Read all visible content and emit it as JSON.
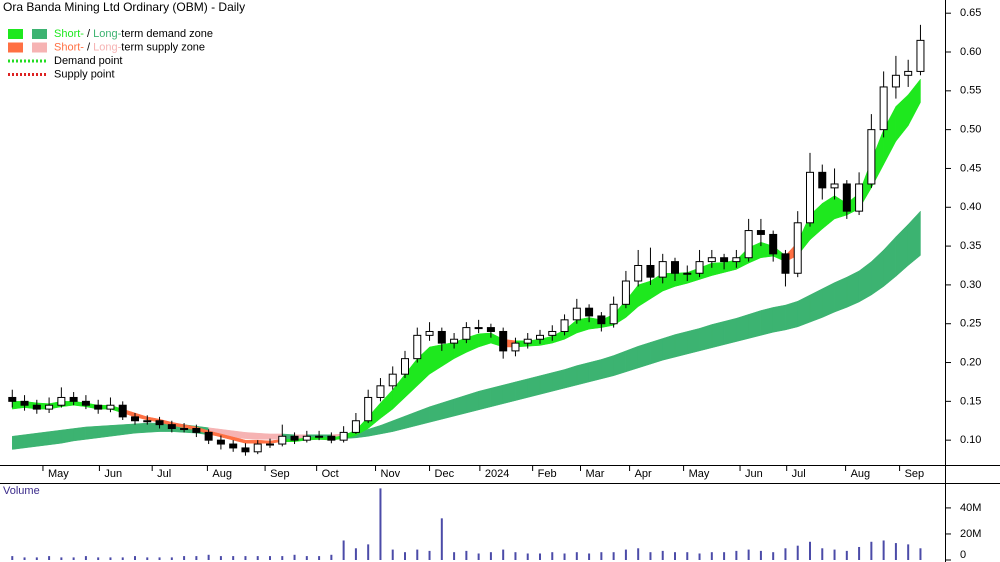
{
  "chart_data": {
    "type": "candlestick",
    "title": "Ora Banda Mining Ltd Ordinary (OBM) - Daily",
    "xlim": [
      -1,
      76
    ],
    "xticks": [
      {
        "value": 2.5,
        "label": "May"
      },
      {
        "value": 7.1,
        "label": "Jun"
      },
      {
        "value": 11.4,
        "label": "Jul"
      },
      {
        "value": 15.9,
        "label": "Aug"
      },
      {
        "value": 20.6,
        "label": "Sep"
      },
      {
        "value": 24.8,
        "label": "Oct"
      },
      {
        "value": 29.6,
        "label": "Nov"
      },
      {
        "value": 34.0,
        "label": "Dec"
      },
      {
        "value": 38.1,
        "label": "2024"
      },
      {
        "value": 42.4,
        "label": "Feb"
      },
      {
        "value": 46.3,
        "label": "Mar"
      },
      {
        "value": 50.3,
        "label": "Apr"
      },
      {
        "value": 54.7,
        "label": "May"
      },
      {
        "value": 59.3,
        "label": "Jun"
      },
      {
        "value": 63.1,
        "label": "Jul"
      },
      {
        "value": 67.9,
        "label": "Aug"
      },
      {
        "value": 72.3,
        "label": "Sep"
      }
    ],
    "ylim": [
      0.068,
      0.667
    ],
    "yticks": [
      {
        "value": 0.1,
        "label": "0.10"
      },
      0.15,
      {
        "value": 0.2,
        "label": "0.20"
      },
      0.25,
      {
        "value": 0.3,
        "label": "0.30"
      },
      0.35,
      {
        "value": 0.4,
        "label": "0.40"
      },
      0.45,
      {
        "value": 0.5,
        "label": "0.50"
      },
      0.55,
      {
        "value": 0.6,
        "label": "0.60"
      },
      0.65
    ],
    "open": [
      0.155,
      0.15,
      0.145,
      0.14,
      0.145,
      0.155,
      0.15,
      0.145,
      0.14,
      0.145,
      0.13,
      0.125,
      0.125,
      0.12,
      0.115,
      0.115,
      0.11,
      0.1,
      0.095,
      0.09,
      0.085,
      0.095,
      0.095,
      0.105,
      0.1,
      0.105,
      0.105,
      0.1,
      0.11,
      0.125,
      0.155,
      0.17,
      0.185,
      0.205,
      0.235,
      0.24,
      0.225,
      0.23,
      0.245,
      0.245,
      0.24,
      0.215,
      0.225,
      0.23,
      0.235,
      0.24,
      0.255,
      0.27,
      0.26,
      0.25,
      0.275,
      0.305,
      0.325,
      0.31,
      0.33,
      0.315,
      0.315,
      0.33,
      0.335,
      0.33,
      0.335,
      0.37,
      0.365,
      0.34,
      0.315,
      0.38,
      0.445,
      0.425,
      0.43,
      0.395,
      0.43,
      0.5,
      0.555,
      0.57,
      0.575
    ],
    "high": [
      0.165,
      0.158,
      0.152,
      0.155,
      0.168,
      0.162,
      0.158,
      0.152,
      0.155,
      0.15,
      0.135,
      0.132,
      0.13,
      0.125,
      0.122,
      0.12,
      0.114,
      0.106,
      0.1,
      0.096,
      0.1,
      0.102,
      0.12,
      0.11,
      0.112,
      0.112,
      0.11,
      0.118,
      0.135,
      0.165,
      0.18,
      0.195,
      0.215,
      0.245,
      0.252,
      0.245,
      0.238,
      0.252,
      0.255,
      0.25,
      0.245,
      0.232,
      0.238,
      0.242,
      0.248,
      0.262,
      0.282,
      0.275,
      0.265,
      0.285,
      0.318,
      0.345,
      0.348,
      0.34,
      0.335,
      0.325,
      0.345,
      0.345,
      0.34,
      0.345,
      0.385,
      0.385,
      0.37,
      0.345,
      0.395,
      0.47,
      0.455,
      0.45,
      0.435,
      0.445,
      0.52,
      0.575,
      0.595,
      0.59,
      0.635
    ],
    "low": [
      0.142,
      0.138,
      0.134,
      0.135,
      0.142,
      0.145,
      0.14,
      0.134,
      0.136,
      0.126,
      0.12,
      0.12,
      0.115,
      0.11,
      0.11,
      0.104,
      0.095,
      0.088,
      0.085,
      0.08,
      0.082,
      0.09,
      0.092,
      0.095,
      0.097,
      0.1,
      0.096,
      0.097,
      0.108,
      0.122,
      0.15,
      0.165,
      0.18,
      0.2,
      0.228,
      0.215,
      0.218,
      0.225,
      0.238,
      0.232,
      0.205,
      0.208,
      0.218,
      0.224,
      0.228,
      0.235,
      0.25,
      0.252,
      0.24,
      0.245,
      0.27,
      0.298,
      0.3,
      0.302,
      0.305,
      0.305,
      0.31,
      0.322,
      0.32,
      0.322,
      0.33,
      0.35,
      0.33,
      0.298,
      0.31,
      0.375,
      0.41,
      0.41,
      0.385,
      0.39,
      0.425,
      0.49,
      0.54,
      0.555,
      0.57
    ],
    "close": [
      0.15,
      0.145,
      0.14,
      0.145,
      0.155,
      0.15,
      0.145,
      0.14,
      0.145,
      0.13,
      0.125,
      0.125,
      0.12,
      0.115,
      0.115,
      0.11,
      0.1,
      0.095,
      0.09,
      0.085,
      0.095,
      0.095,
      0.105,
      0.1,
      0.105,
      0.105,
      0.1,
      0.11,
      0.125,
      0.155,
      0.17,
      0.185,
      0.205,
      0.235,
      0.24,
      0.225,
      0.23,
      0.245,
      0.245,
      0.24,
      0.215,
      0.225,
      0.23,
      0.235,
      0.24,
      0.255,
      0.27,
      0.26,
      0.25,
      0.275,
      0.305,
      0.325,
      0.31,
      0.33,
      0.315,
      0.315,
      0.33,
      0.335,
      0.33,
      0.335,
      0.37,
      0.365,
      0.34,
      0.315,
      0.38,
      0.445,
      0.425,
      0.43,
      0.395,
      0.43,
      0.5,
      0.555,
      0.57,
      0.575,
      0.615
    ],
    "short_zone": {
      "upper": [
        0.15,
        0.15,
        0.148,
        0.147,
        0.15,
        0.15,
        0.148,
        0.145,
        0.145,
        0.14,
        0.135,
        0.13,
        0.127,
        0.123,
        0.12,
        0.117,
        0.112,
        0.108,
        0.104,
        0.1,
        0.1,
        0.099,
        0.101,
        0.101,
        0.103,
        0.104,
        0.103,
        0.106,
        0.113,
        0.13,
        0.148,
        0.165,
        0.185,
        0.205,
        0.22,
        0.223,
        0.226,
        0.232,
        0.237,
        0.238,
        0.23,
        0.228,
        0.228,
        0.23,
        0.234,
        0.242,
        0.255,
        0.258,
        0.255,
        0.262,
        0.28,
        0.3,
        0.305,
        0.315,
        0.315,
        0.316,
        0.322,
        0.328,
        0.329,
        0.332,
        0.348,
        0.355,
        0.35,
        0.338,
        0.355,
        0.39,
        0.405,
        0.415,
        0.405,
        0.418,
        0.46,
        0.5,
        0.53,
        0.545,
        0.565
      ],
      "lower": [
        0.14,
        0.142,
        0.14,
        0.14,
        0.143,
        0.145,
        0.143,
        0.14,
        0.14,
        0.135,
        0.13,
        0.126,
        0.123,
        0.119,
        0.116,
        0.113,
        0.108,
        0.104,
        0.1,
        0.096,
        0.096,
        0.096,
        0.098,
        0.098,
        0.1,
        0.101,
        0.1,
        0.102,
        0.106,
        0.115,
        0.128,
        0.14,
        0.155,
        0.17,
        0.185,
        0.195,
        0.205,
        0.213,
        0.22,
        0.225,
        0.22,
        0.22,
        0.221,
        0.222,
        0.225,
        0.23,
        0.238,
        0.243,
        0.245,
        0.248,
        0.258,
        0.272,
        0.282,
        0.292,
        0.298,
        0.302,
        0.307,
        0.312,
        0.316,
        0.32,
        0.328,
        0.335,
        0.337,
        0.33,
        0.338,
        0.358,
        0.372,
        0.385,
        0.39,
        0.398,
        0.425,
        0.455,
        0.485,
        0.505,
        0.535
      ]
    },
    "long_zone": {
      "upper": [
        0.105,
        0.107,
        0.109,
        0.111,
        0.113,
        0.115,
        0.117,
        0.118,
        0.119,
        0.12,
        0.121,
        0.122,
        0.122,
        0.121,
        0.12,
        0.118,
        0.116,
        0.114,
        0.112,
        0.11,
        0.109,
        0.108,
        0.108,
        0.107,
        0.107,
        0.107,
        0.107,
        0.108,
        0.11,
        0.114,
        0.119,
        0.125,
        0.131,
        0.137,
        0.143,
        0.148,
        0.153,
        0.158,
        0.163,
        0.167,
        0.171,
        0.175,
        0.179,
        0.183,
        0.187,
        0.191,
        0.196,
        0.2,
        0.204,
        0.209,
        0.215,
        0.221,
        0.226,
        0.231,
        0.236,
        0.24,
        0.244,
        0.249,
        0.253,
        0.257,
        0.262,
        0.267,
        0.271,
        0.274,
        0.279,
        0.287,
        0.295,
        0.303,
        0.31,
        0.318,
        0.33,
        0.345,
        0.362,
        0.378,
        0.395
      ],
      "lower": [
        0.088,
        0.09,
        0.092,
        0.094,
        0.096,
        0.099,
        0.101,
        0.103,
        0.105,
        0.107,
        0.109,
        0.11,
        0.111,
        0.111,
        0.11,
        0.109,
        0.107,
        0.105,
        0.103,
        0.102,
        0.101,
        0.101,
        0.101,
        0.101,
        0.101,
        0.101,
        0.101,
        0.102,
        0.103,
        0.105,
        0.108,
        0.111,
        0.115,
        0.119,
        0.123,
        0.127,
        0.131,
        0.135,
        0.139,
        0.143,
        0.147,
        0.151,
        0.155,
        0.159,
        0.163,
        0.167,
        0.171,
        0.175,
        0.179,
        0.183,
        0.188,
        0.193,
        0.198,
        0.203,
        0.207,
        0.211,
        0.215,
        0.219,
        0.223,
        0.227,
        0.231,
        0.235,
        0.239,
        0.242,
        0.246,
        0.252,
        0.258,
        0.265,
        0.271,
        0.278,
        0.287,
        0.298,
        0.311,
        0.325,
        0.338
      ]
    },
    "legend": [
      {
        "short": "Short-",
        "sep": " / ",
        "long": "Long-",
        "rest": "term demand zone",
        "short_color": "#1ee81e",
        "long_color": "#3cb371"
      },
      {
        "short": "Short-",
        "sep": " / ",
        "long": "Long-",
        "rest": "term supply zone",
        "short_color": "#ff7043",
        "long_color": "#f6b3b3"
      },
      {
        "label": "Demand point",
        "color": "#22dd22"
      },
      {
        "label": "Supply point",
        "color": "#dd2222"
      }
    ],
    "volume": {
      "title": "Volume",
      "color": "#4b4ba8",
      "ylim": [
        0,
        57600000
      ],
      "yticks": [
        0,
        {
          "value": 20000000,
          "label": "20M"
        },
        {
          "value": 40000000,
          "label": "40M"
        }
      ],
      "values": [
        3000000.0,
        2000000.0,
        2000000.0,
        3000000.0,
        2000000.0,
        2000000.0,
        3000000.0,
        2000000.0,
        2000000.0,
        2000000.0,
        3000000.0,
        2000000.0,
        2000000.0,
        2000000.0,
        3000000.0,
        3000000.0,
        4000000.0,
        3000000.0,
        3000000.0,
        3000000.0,
        3000000.0,
        3000000.0,
        3000000.0,
        4000000.0,
        3000000.0,
        3000000.0,
        4000000.0,
        15000000.0,
        9000000.0,
        12000000.0,
        55000000.0,
        8000000.0,
        6000000.0,
        8000000.0,
        7000000.0,
        32000000.0,
        6000000.0,
        7000000.0,
        5000000.0,
        6000000.0,
        8000000.0,
        6000000.0,
        5000000.0,
        5000000.0,
        6000000.0,
        5000000.0,
        6000000.0,
        5000000.0,
        6000000.0,
        6000000.0,
        8000000.0,
        9000000.0,
        6000000.0,
        7000000.0,
        6000000.0,
        6000000.0,
        5000000.0,
        6000000.0,
        6000000.0,
        7000000.0,
        8000000.0,
        7000000.0,
        6000000.0,
        9000000.0,
        11000000.0,
        14000000.0,
        9000000.0,
        8000000.0,
        7000000.0,
        10000000.0,
        14000000.0,
        15000000.0,
        13000000.0,
        12000000.0,
        9000000.0
      ]
    }
  }
}
